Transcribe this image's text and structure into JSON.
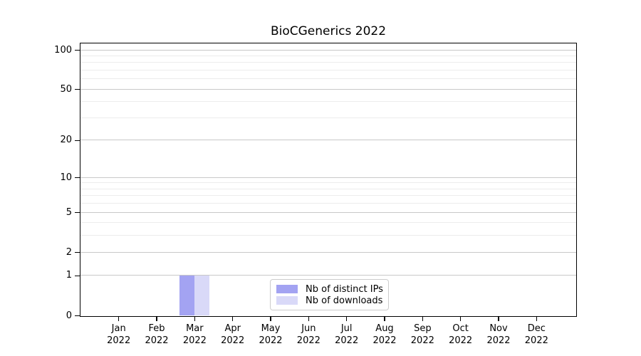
{
  "title": "BioCGenerics 2022",
  "chart_data": {
    "type": "bar",
    "title": "BioCGenerics 2022",
    "x_categories": [
      "Jan",
      "Feb",
      "Mar",
      "Apr",
      "May",
      "Jun",
      "Jul",
      "Aug",
      "Sep",
      "Oct",
      "Nov",
      "Dec"
    ],
    "x_year": "2022",
    "series": [
      {
        "name": "Nb of distinct IPs",
        "color": "#a3a3f2",
        "values": [
          0,
          0,
          1,
          0,
          0,
          0,
          0,
          0,
          0,
          0,
          0,
          0
        ]
      },
      {
        "name": "Nb of downloads",
        "color": "#d9d9f8",
        "values": [
          0,
          0,
          1,
          0,
          0,
          0,
          0,
          0,
          0,
          0,
          0,
          0
        ]
      }
    ],
    "yscale": "log10(1+x)",
    "ylim": [
      0,
      112
    ],
    "ytick_values": [
      0,
      1,
      2,
      5,
      10,
      20,
      50,
      100
    ],
    "ytick_labels": [
      "0",
      "1",
      "2",
      "5",
      "10",
      "20",
      "50",
      "100"
    ],
    "grid_minor_values": [
      3,
      4,
      6,
      7,
      8,
      9,
      30,
      40,
      60,
      70,
      80,
      90
    ],
    "grid": true,
    "legend_position": "bottom-center",
    "colors": {
      "major_grid": "#c8c8c8",
      "minor_grid": "#ececec",
      "axis": "#000000",
      "background": "#ffffff"
    }
  }
}
